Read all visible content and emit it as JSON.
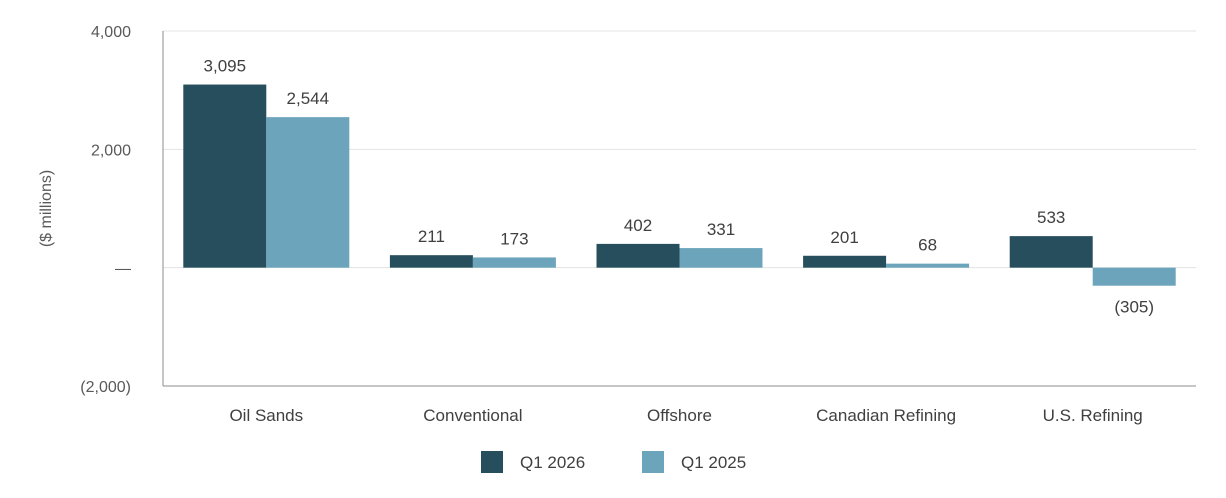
{
  "chart_data": {
    "type": "bar",
    "ylabel": "($ millions)",
    "ylim": [
      -2000,
      4000
    ],
    "yticks": [
      {
        "value": 4000,
        "label": "4,000"
      },
      {
        "value": 2000,
        "label": "2,000"
      },
      {
        "value": 0,
        "label": "—"
      },
      {
        "value": -2000,
        "label": "(2,000)"
      }
    ],
    "categories": [
      "Oil Sands",
      "Conventional",
      "Offshore",
      "Canadian Refining",
      "U.S. Refining"
    ],
    "series": [
      {
        "name": "Q1 2026",
        "color": "#264e5c",
        "values": [
          3095,
          211,
          402,
          201,
          533
        ],
        "labels": [
          "3,095",
          "211",
          "402",
          "201",
          "533"
        ]
      },
      {
        "name": "Q1 2025",
        "color": "#6ba4bb",
        "values": [
          2544,
          173,
          331,
          68,
          -305
        ],
        "labels": [
          "2,544",
          "173",
          "331",
          "68",
          "(305)"
        ]
      }
    ],
    "grid": true,
    "legend_position": "bottom"
  }
}
